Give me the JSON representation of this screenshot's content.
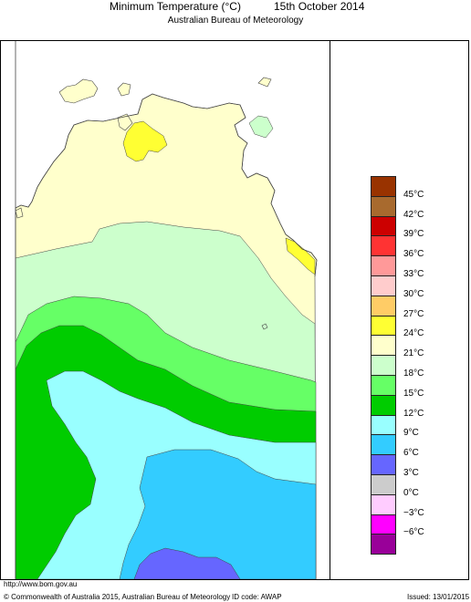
{
  "header": {
    "title": "Minimum Temperature (°C)",
    "date": "15th October 2014",
    "subtitle": "Australian Bureau of Meteorology"
  },
  "legend": {
    "colors": [
      "#993300",
      "#a86a2e",
      "#cc0000",
      "#ff3333",
      "#ff9999",
      "#ffcccc",
      "#ffcc66",
      "#ffff33",
      "#ffffcc",
      "#ccffcc",
      "#66ff66",
      "#00cc00",
      "#99ffff",
      "#33ccff",
      "#6666ff",
      "#cccccc",
      "#ffccff",
      "#ff00ff",
      "#990099"
    ],
    "labels": [
      "45°C",
      "42°C",
      "39°C",
      "36°C",
      "33°C",
      "30°C",
      "27°C",
      "24°C",
      "21°C",
      "18°C",
      "15°C",
      "12°C",
      "9°C",
      "6°C",
      "3°C",
      "0°C",
      "−3°C",
      "−6°C"
    ]
  },
  "map_fills": {
    "sea": "#ffffff",
    "band_21_24": "#ffffcc",
    "band_24_27": "#ffff33",
    "band_18_21": "#ccffcc",
    "band_15_18": "#66ff66",
    "band_12_15": "#00cc00",
    "band_9_12": "#99ffff",
    "band_6_9": "#33ccff",
    "band_3_6": "#6666ff"
  },
  "footer": {
    "url": "http://www.bom.gov.au",
    "copyright": "© Commonwealth of Australia 2015, Australian Bureau of Meteorology",
    "id_code": "ID code: AWAP",
    "issued": "Issued: 13/01/2015"
  }
}
